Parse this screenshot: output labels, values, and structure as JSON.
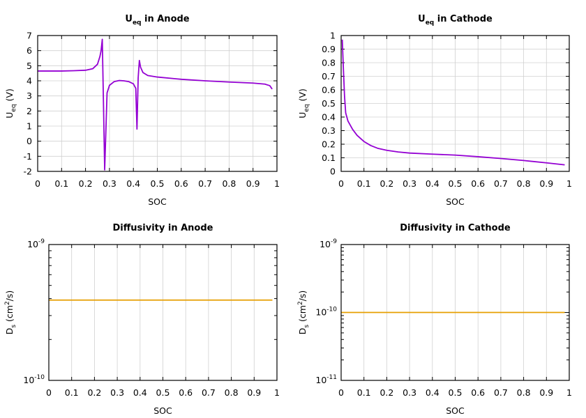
{
  "chart_data": [
    {
      "id": "anode-ueq",
      "type": "line",
      "title": "U",
      "title_sub": "eq",
      "title_rest": " in Anode",
      "xlabel": "SOC",
      "ylabel": "U",
      "ylabel_sub": "eq",
      "ylabel_rest": " (V)",
      "xlim": [
        0,
        1
      ],
      "ylim": [
        -2,
        7
      ],
      "yscale": "linear",
      "grid": true,
      "xticks": [
        "0",
        "0.1",
        "0.2",
        "0.3",
        "0.4",
        "0.5",
        "0.6",
        "0.7",
        "0.8",
        "0.9",
        "1"
      ],
      "yticks": [
        "-2",
        "-1",
        "0",
        "1",
        "2",
        "3",
        "4",
        "5",
        "6",
        "7"
      ],
      "series": [
        {
          "color": "#9400D3",
          "x": [
            0,
            0.05,
            0.1,
            0.15,
            0.2,
            0.23,
            0.25,
            0.26,
            0.265,
            0.27,
            0.275,
            0.28,
            0.29,
            0.3,
            0.32,
            0.34,
            0.36,
            0.38,
            0.4,
            0.41,
            0.415,
            0.42,
            0.425,
            0.43,
            0.44,
            0.46,
            0.5,
            0.6,
            0.7,
            0.8,
            0.9,
            0.95,
            0.97,
            0.98
          ],
          "y": [
            4.65,
            4.65,
            4.65,
            4.67,
            4.7,
            4.8,
            5.1,
            5.6,
            6.0,
            6.75,
            2.5,
            -1.9,
            3.2,
            3.7,
            3.95,
            4.02,
            4.0,
            3.95,
            3.8,
            3.5,
            0.8,
            4.2,
            5.35,
            4.9,
            4.55,
            4.35,
            4.25,
            4.1,
            4.0,
            3.92,
            3.85,
            3.78,
            3.68,
            3.45
          ]
        }
      ]
    },
    {
      "id": "cathode-ueq",
      "type": "line",
      "title": "U",
      "title_sub": "eq",
      "title_rest": " in Cathode",
      "xlabel": "SOC",
      "ylabel": "U",
      "ylabel_sub": "eq",
      "ylabel_rest": " (V)",
      "xlim": [
        0,
        1
      ],
      "ylim": [
        0,
        1
      ],
      "yscale": "linear",
      "grid": true,
      "xticks": [
        "0",
        "0.1",
        "0.2",
        "0.3",
        "0.4",
        "0.5",
        "0.6",
        "0.7",
        "0.8",
        "0.9",
        "1"
      ],
      "yticks": [
        "0",
        "0.1",
        "0.2",
        "0.3",
        "0.4",
        "0.5",
        "0.6",
        "0.7",
        "0.8",
        "0.9",
        "1"
      ],
      "series": [
        {
          "color": "#9400D3",
          "x": [
            0.005,
            0.01,
            0.015,
            0.02,
            0.03,
            0.05,
            0.07,
            0.1,
            0.13,
            0.16,
            0.2,
            0.25,
            0.3,
            0.4,
            0.5,
            0.6,
            0.7,
            0.8,
            0.9,
            0.98
          ],
          "y": [
            0.97,
            0.75,
            0.55,
            0.43,
            0.37,
            0.31,
            0.265,
            0.22,
            0.19,
            0.17,
            0.155,
            0.143,
            0.135,
            0.127,
            0.12,
            0.108,
            0.095,
            0.08,
            0.063,
            0.048
          ]
        }
      ]
    },
    {
      "id": "anode-diffusivity",
      "type": "line",
      "title": "Diffusivity in Anode",
      "xlabel": "SOC",
      "ylabel": "D",
      "ylabel_sub": "s",
      "ylabel_mid": " (cm",
      "ylabel_sup": "2",
      "ylabel_rest": "/s)",
      "xlim": [
        0,
        1
      ],
      "ylim": [
        1e-10,
        1e-09
      ],
      "yscale": "log",
      "grid": true,
      "xticks": [
        "0",
        "0.1",
        "0.2",
        "0.3",
        "0.4",
        "0.5",
        "0.6",
        "0.7",
        "0.8",
        "0.9",
        "1"
      ],
      "yticks": [
        {
          "base": "10",
          "exp": "-10"
        },
        {
          "base": "10",
          "exp": "-9"
        }
      ],
      "series": [
        {
          "color": "#E69F00",
          "x": [
            0,
            0.98
          ],
          "y": [
            3.9e-10,
            3.9e-10
          ]
        }
      ]
    },
    {
      "id": "cathode-diffusivity",
      "type": "line",
      "title": "Diffusivity in Cathode",
      "xlabel": "SOC",
      "ylabel": "D",
      "ylabel_sub": "s",
      "ylabel_mid": " (cm",
      "ylabel_sup": "2",
      "ylabel_rest": "/s)",
      "xlim": [
        0,
        1
      ],
      "ylim": [
        1e-11,
        1e-09
      ],
      "yscale": "log",
      "grid": true,
      "xticks": [
        "0",
        "0.1",
        "0.2",
        "0.3",
        "0.4",
        "0.5",
        "0.6",
        "0.7",
        "0.8",
        "0.9",
        "1"
      ],
      "yticks": [
        {
          "base": "10",
          "exp": "-11"
        },
        {
          "base": "10",
          "exp": "-10"
        },
        {
          "base": "10",
          "exp": "-9"
        }
      ],
      "series": [
        {
          "color": "#E69F00",
          "x": [
            0,
            0.98
          ],
          "y": [
            1e-10,
            1e-10
          ]
        }
      ]
    }
  ]
}
